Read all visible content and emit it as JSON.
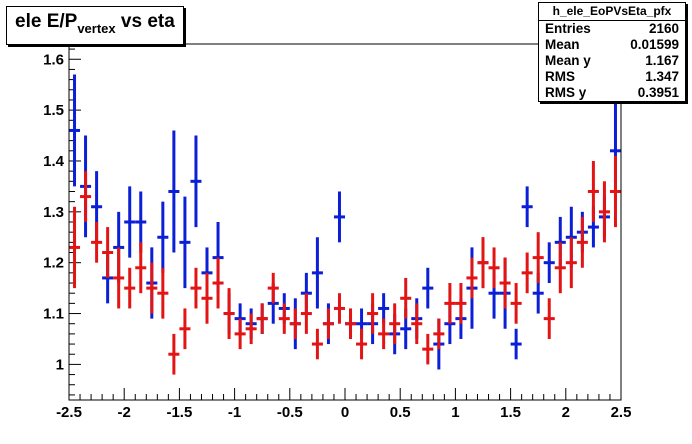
{
  "title": {
    "main": "ele E/P",
    "sub": "vertex",
    "tail": " vs eta"
  },
  "stats": {
    "name": "h_ele_EoPVsEta_pfx",
    "rows": [
      {
        "label": "Entries",
        "value": "2160"
      },
      {
        "label": "Mean",
        "value": "0.01599"
      },
      {
        "label": "Mean y",
        "value": "1.167"
      },
      {
        "label": "RMS",
        "value": "1.347"
      },
      {
        "label": "RMS y",
        "value": "0.3951"
      }
    ]
  },
  "colors": {
    "series_a": "#0b1fd6",
    "series_b": "#e31414",
    "axis": "#000000",
    "background": "#ffffff"
  },
  "chart_data": {
    "type": "scatter",
    "style": "profile-errorbars",
    "xlim": [
      -2.5,
      2.5
    ],
    "ylim": [
      0.93,
      1.63
    ],
    "xticks": [
      "-2.5",
      "-2",
      "-1.5",
      "-1",
      "-0.5",
      "0",
      "0.5",
      "1",
      "1.5",
      "2",
      "2.5"
    ],
    "yticks": [
      "1",
      "1.1",
      "1.2",
      "1.3",
      "1.4",
      "1.5",
      "1.6"
    ],
    "bin_half_width": 0.05,
    "series": [
      {
        "color": "#0b1fd6",
        "x": [
          -2.45,
          -2.35,
          -2.25,
          -2.15,
          -2.05,
          -1.95,
          -1.85,
          -1.75,
          -1.65,
          -1.55,
          -1.45,
          -1.35,
          -1.25,
          -1.15,
          -1.05,
          -0.95,
          -0.85,
          -0.75,
          -0.65,
          -0.55,
          -0.45,
          -0.35,
          -0.25,
          -0.15,
          -0.05,
          0.05,
          0.15,
          0.25,
          0.35,
          0.45,
          0.55,
          0.65,
          0.75,
          0.85,
          0.95,
          1.05,
          1.15,
          1.25,
          1.35,
          1.45,
          1.55,
          1.65,
          1.75,
          1.85,
          1.95,
          2.05,
          2.15,
          2.25,
          2.35,
          2.45
        ],
        "y": [
          1.46,
          1.35,
          1.31,
          1.17,
          1.23,
          1.28,
          1.28,
          1.16,
          1.25,
          1.34,
          1.24,
          1.36,
          1.18,
          1.21,
          1.1,
          1.09,
          1.08,
          1.09,
          1.12,
          1.11,
          1.08,
          1.14,
          1.18,
          1.08,
          1.29,
          1.08,
          1.08,
          1.08,
          1.11,
          1.06,
          1.07,
          1.09,
          1.15,
          1.04,
          1.08,
          1.09,
          1.15,
          1.2,
          1.14,
          1.14,
          1.04,
          1.31,
          1.14,
          1.2,
          1.24,
          1.25,
          1.26,
          1.27,
          1.29,
          1.42
        ],
        "err": [
          0.11,
          0.1,
          0.07,
          0.05,
          0.07,
          0.07,
          0.06,
          0.07,
          0.07,
          0.12,
          0.09,
          0.09,
          0.05,
          0.07,
          0.04,
          0.03,
          0.03,
          0.03,
          0.04,
          0.03,
          0.05,
          0.04,
          0.07,
          0.04,
          0.05,
          0.03,
          0.03,
          0.04,
          0.03,
          0.04,
          0.04,
          0.04,
          0.04,
          0.05,
          0.04,
          0.04,
          0.08,
          0.05,
          0.05,
          0.07,
          0.03,
          0.04,
          0.04,
          0.04,
          0.05,
          0.06,
          0.04,
          0.04,
          0.04,
          0.1
        ]
      },
      {
        "color": "#e31414",
        "x": [
          -2.45,
          -2.35,
          -2.25,
          -2.15,
          -2.05,
          -1.95,
          -1.85,
          -1.75,
          -1.65,
          -1.55,
          -1.45,
          -1.35,
          -1.25,
          -1.15,
          -1.05,
          -0.95,
          -0.85,
          -0.75,
          -0.65,
          -0.55,
          -0.45,
          -0.35,
          -0.25,
          -0.15,
          -0.05,
          0.05,
          0.15,
          0.25,
          0.35,
          0.45,
          0.55,
          0.65,
          0.75,
          0.85,
          0.95,
          1.05,
          1.15,
          1.25,
          1.35,
          1.45,
          1.55,
          1.65,
          1.75,
          1.85,
          1.95,
          2.05,
          2.15,
          2.25,
          2.35,
          2.45
        ],
        "y": [
          1.23,
          1.33,
          1.24,
          1.22,
          1.17,
          1.15,
          1.19,
          1.15,
          1.14,
          1.02,
          1.07,
          1.15,
          1.13,
          1.16,
          1.1,
          1.06,
          1.07,
          1.09,
          1.15,
          1.09,
          1.08,
          1.1,
          1.04,
          1.08,
          1.11,
          1.08,
          1.04,
          1.1,
          1.06,
          1.08,
          1.13,
          1.08,
          1.03,
          1.06,
          1.12,
          1.12,
          1.17,
          1.2,
          1.19,
          1.16,
          1.12,
          1.18,
          1.21,
          1.09,
          1.19,
          1.2,
          1.24,
          1.34,
          1.3,
          1.34
        ],
        "err": [
          0.08,
          0.05,
          0.04,
          0.05,
          0.06,
          0.04,
          0.05,
          0.05,
          0.05,
          0.04,
          0.04,
          0.04,
          0.05,
          0.05,
          0.05,
          0.03,
          0.03,
          0.03,
          0.03,
          0.03,
          0.03,
          0.04,
          0.03,
          0.03,
          0.03,
          0.03,
          0.03,
          0.04,
          0.03,
          0.04,
          0.04,
          0.04,
          0.03,
          0.03,
          0.04,
          0.04,
          0.04,
          0.05,
          0.04,
          0.05,
          0.04,
          0.04,
          0.05,
          0.04,
          0.05,
          0.05,
          0.05,
          0.06,
          0.06,
          0.07
        ]
      }
    ]
  }
}
